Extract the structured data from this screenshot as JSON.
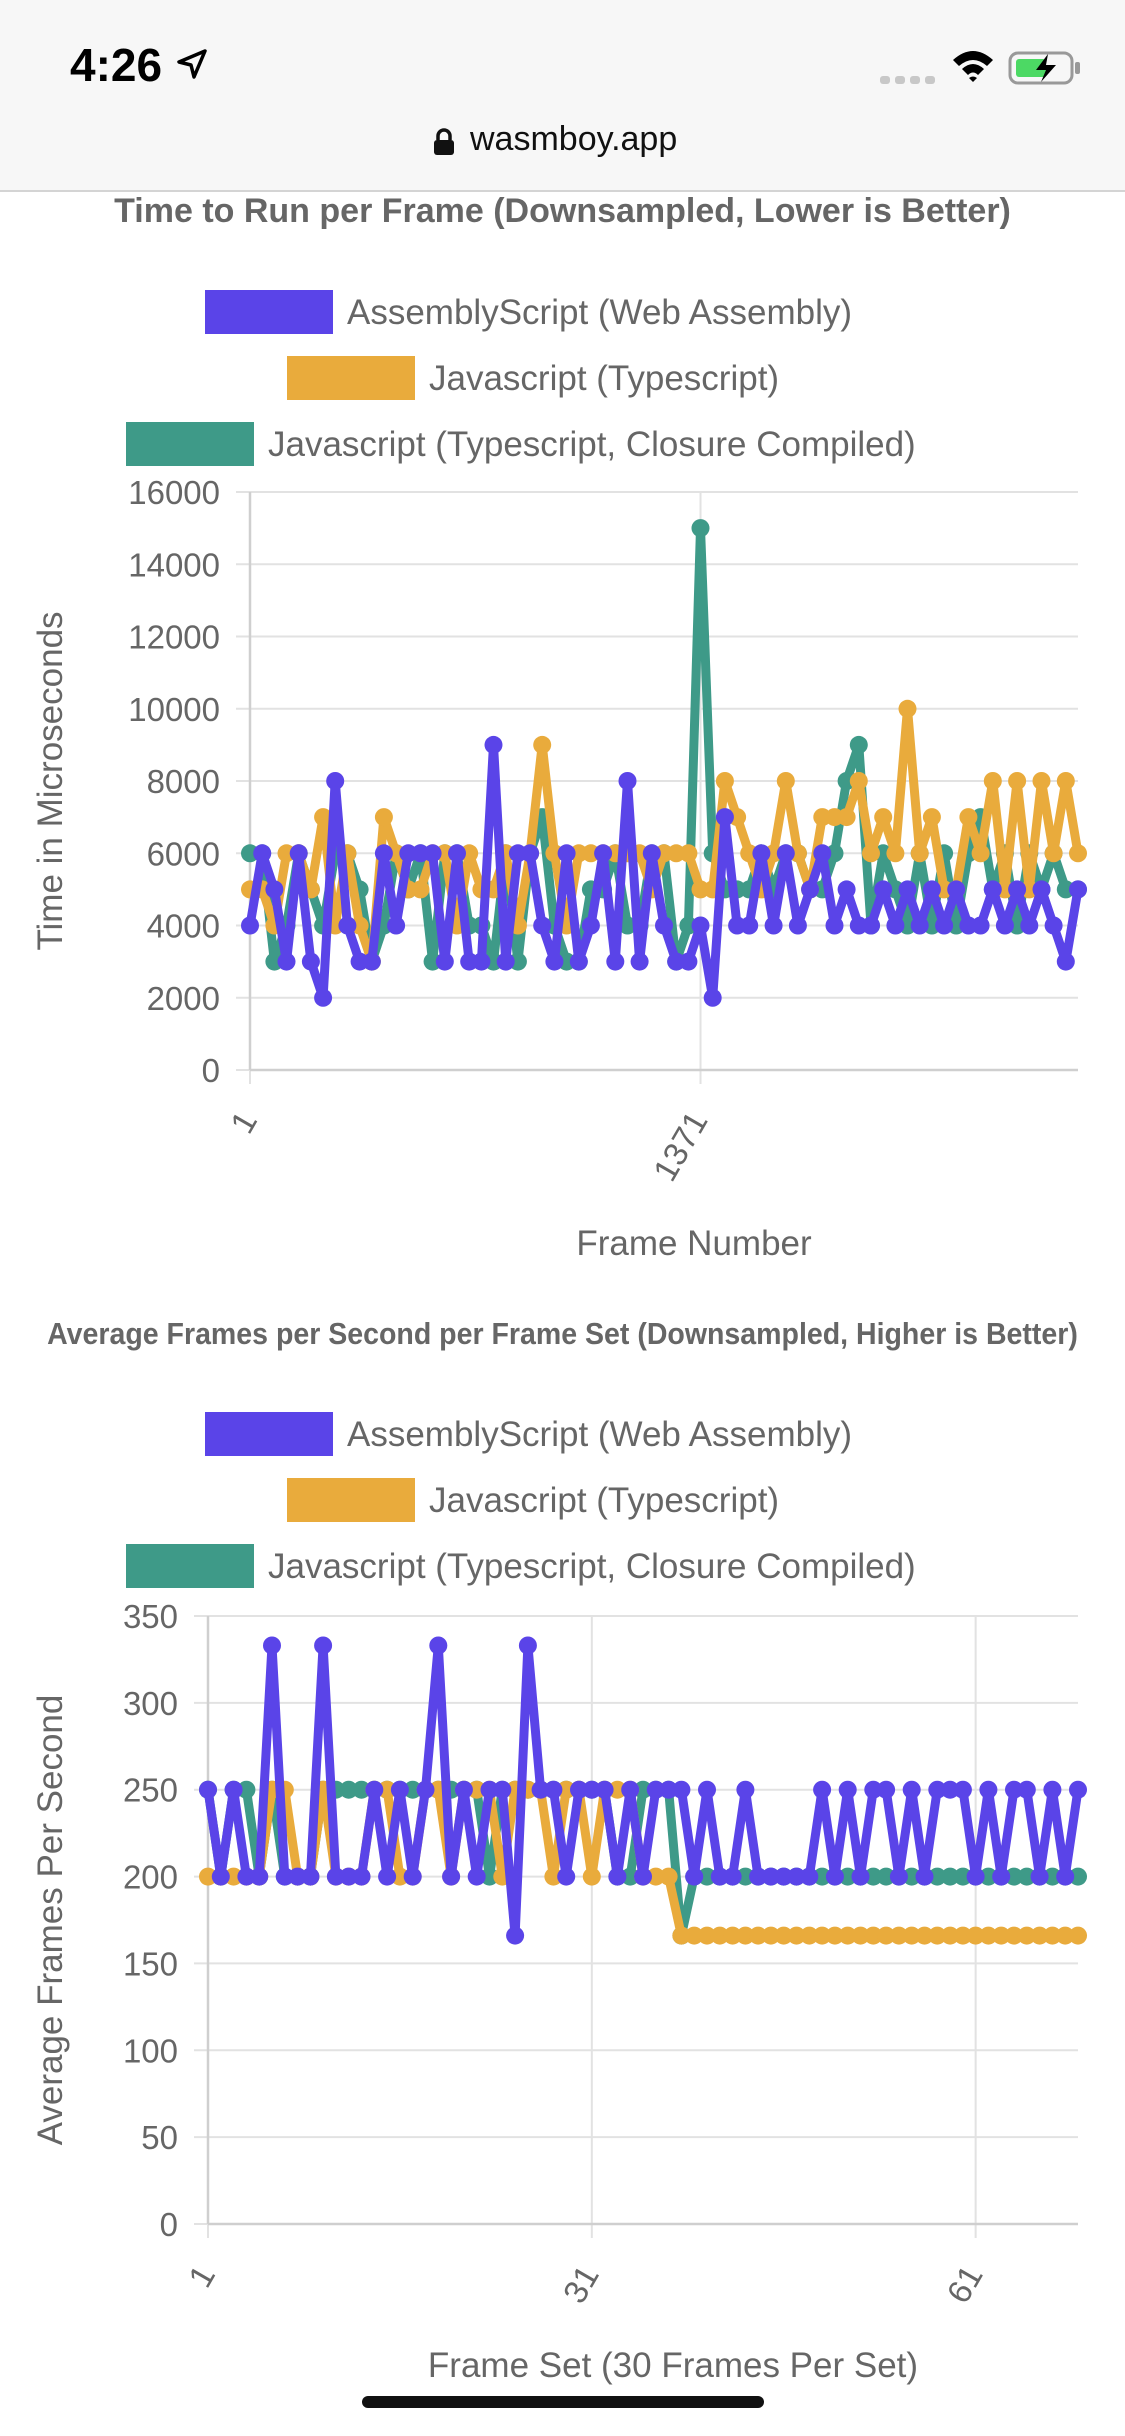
{
  "status_bar": {
    "time": "4:26",
    "icons": [
      "location-arrow-icon",
      "signal-icon",
      "wifi-icon",
      "battery-charging-icon"
    ]
  },
  "browser": {
    "url": "wasmboy.app",
    "icons": [
      "lock-icon"
    ]
  },
  "colors": {
    "assemblyscript": "#5a44e8",
    "javascript": "#e9ab3c",
    "closure": "#3e9a88",
    "axis_text": "#666666",
    "grid": "#e2e2e2"
  },
  "chart_data": [
    {
      "type": "line",
      "title": "Time to Run per Frame (Downsampled, Lower is Better)",
      "xlabel": "Frame Number",
      "ylabel": "Time in Microseconds",
      "ylim": [
        0,
        16000
      ],
      "yticks": [
        "0",
        "2000",
        "4000",
        "6000",
        "8000",
        "10000",
        "12000",
        "14000",
        "16000"
      ],
      "xticks": [
        "1",
        "1371"
      ],
      "grid": true,
      "legend": "top",
      "series": [
        {
          "name": "AssemblyScript (Web Assembly)",
          "color_key": "assemblyscript",
          "values": [
            4000,
            6000,
            5000,
            3000,
            6000,
            3000,
            2000,
            8000,
            4000,
            3000,
            3000,
            6000,
            4000,
            6000,
            6000,
            6000,
            3000,
            6000,
            3000,
            3000,
            9000,
            3000,
            6000,
            6000,
            4000,
            3000,
            6000,
            3000,
            4000,
            6000,
            3000,
            8000,
            3000,
            6000,
            4000,
            3000,
            3000,
            4000,
            2000,
            7000,
            4000,
            4000,
            6000,
            4000,
            6000,
            4000,
            5000,
            6000,
            4000,
            5000,
            4000,
            4000,
            5000,
            4000,
            5000,
            4000,
            5000,
            4000,
            5000,
            4000,
            4000,
            5000,
            4000,
            5000,
            4000,
            5000,
            4000,
            3000,
            5000
          ]
        },
        {
          "name": "Javascript (Typescript)",
          "color_key": "javascript",
          "values": [
            5000,
            5000,
            4000,
            6000,
            6000,
            5000,
            7000,
            4000,
            6000,
            4000,
            3000,
            7000,
            6000,
            5000,
            5000,
            6000,
            6000,
            4000,
            6000,
            5000,
            5000,
            6000,
            4000,
            6000,
            9000,
            6000,
            4000,
            6000,
            6000,
            6000,
            6000,
            6000,
            6000,
            5000,
            6000,
            6000,
            6000,
            5000,
            5000,
            8000,
            7000,
            6000,
            5000,
            6000,
            8000,
            6000,
            5000,
            7000,
            7000,
            7000,
            8000,
            6000,
            7000,
            6000,
            10000,
            6000,
            7000,
            5000,
            5000,
            7000,
            6000,
            8000,
            5000,
            8000,
            5000,
            8000,
            6000,
            8000,
            6000
          ]
        },
        {
          "name": "Javascript (Typescript, Closure Compiled)",
          "color_key": "closure",
          "values": [
            6000,
            6000,
            3000,
            4000,
            6000,
            5000,
            4000,
            6000,
            6000,
            5000,
            3000,
            4000,
            6000,
            5000,
            6000,
            3000,
            6000,
            6000,
            4000,
            4000,
            3000,
            6000,
            3000,
            6000,
            7000,
            4000,
            3000,
            3000,
            5000,
            5000,
            6000,
            4000,
            4000,
            6000,
            6000,
            3000,
            4000,
            15000,
            6000,
            5000,
            5000,
            5000,
            6000,
            5000,
            6000,
            6000,
            5000,
            5000,
            6000,
            8000,
            9000,
            4000,
            6000,
            5000,
            4000,
            6000,
            4000,
            6000,
            4000,
            6000,
            7000,
            5000,
            6000,
            4000,
            6000,
            5000,
            6000,
            5000,
            5000
          ]
        }
      ]
    },
    {
      "type": "line",
      "title": "Average Frames per Second per Frame Set (Downsampled, Higher is Better)",
      "xlabel": "Frame Set (30 Frames Per Set)",
      "ylabel": "Average Frames Per Second",
      "ylim": [
        0,
        350
      ],
      "yticks": [
        "0",
        "50",
        "100",
        "150",
        "200",
        "250",
        "300",
        "350"
      ],
      "xticks": [
        "1",
        "31",
        "61"
      ],
      "grid": true,
      "legend": "top",
      "series": [
        {
          "name": "AssemblyScript (Web Assembly)",
          "color_key": "assemblyscript",
          "values": [
            250,
            200,
            250,
            200,
            200,
            333,
            200,
            200,
            200,
            333,
            200,
            200,
            200,
            250,
            200,
            250,
            200,
            250,
            333,
            200,
            250,
            200,
            250,
            250,
            166,
            333,
            250,
            250,
            200,
            250,
            250,
            250,
            200,
            250,
            200,
            250,
            250,
            250,
            200,
            250,
            200,
            200,
            250,
            200,
            200,
            200,
            200,
            200,
            250,
            200,
            250,
            200,
            250,
            250,
            200,
            250,
            200,
            250,
            250,
            250,
            200,
            250,
            200,
            250,
            250,
            200,
            250,
            200,
            250
          ]
        },
        {
          "name": "Javascript (Typescript)",
          "color_key": "javascript",
          "values": [
            200,
            200,
            200,
            200,
            200,
            250,
            250,
            200,
            200,
            250,
            200,
            200,
            200,
            250,
            250,
            200,
            200,
            250,
            250,
            200,
            250,
            250,
            250,
            200,
            250,
            250,
            250,
            200,
            250,
            250,
            200,
            250,
            250,
            250,
            200,
            200,
            200,
            166,
            166,
            166,
            166,
            166,
            166,
            166,
            166,
            166,
            166,
            166,
            166,
            166,
            166,
            166,
            166,
            166,
            166,
            166,
            166,
            166,
            166,
            166,
            166,
            166,
            166,
            166,
            166,
            166,
            166,
            166,
            166
          ]
        },
        {
          "name": "Javascript (Typescript, Closure Compiled)",
          "color_key": "closure",
          "values": [
            250,
            200,
            250,
            250,
            200,
            250,
            200,
            200,
            200,
            250,
            250,
            250,
            250,
            250,
            250,
            250,
            250,
            250,
            250,
            250,
            250,
            250,
            200,
            250,
            250,
            250,
            250,
            250,
            250,
            250,
            250,
            250,
            200,
            200,
            250,
            250,
            250,
            166,
            200,
            200,
            200,
            200,
            200,
            200,
            200,
            200,
            200,
            200,
            200,
            200,
            200,
            200,
            200,
            200,
            200,
            200,
            200,
            200,
            200,
            200,
            200,
            200,
            200,
            200,
            200,
            200,
            200,
            200,
            200
          ]
        }
      ]
    }
  ]
}
